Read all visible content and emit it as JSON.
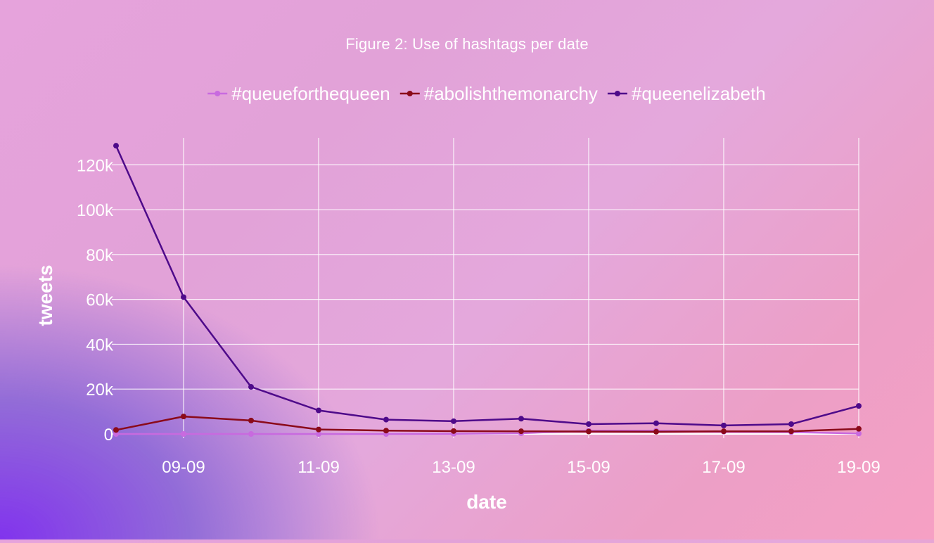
{
  "page": {
    "title": "Figure 2: Use of hashtags per date"
  },
  "chart_data": {
    "type": "line",
    "title": "Figure 2: Use of hashtags per date",
    "xlabel": "date",
    "ylabel": "tweets",
    "x": [
      "2022-09-08",
      "2022-09-09",
      "2022-09-10",
      "2022-09-11",
      "2022-09-12",
      "2022-09-13",
      "2022-09-14",
      "2022-09-15",
      "2022-09-16",
      "2022-09-17",
      "2022-09-18",
      "2022-09-19"
    ],
    "xlim": [
      "2022-09-08",
      "2022-09-19"
    ],
    "x_ticks": [
      "2022-09-09",
      "2022-09-11",
      "2022-09-13",
      "2022-09-15",
      "2022-09-17",
      "2022-09-19"
    ],
    "x_tick_labels": [
      "09-09",
      "11-09",
      "13-09",
      "15-09",
      "17-09",
      "19-09"
    ],
    "ylim": [
      0,
      132000
    ],
    "y_ticks": [
      0,
      20000,
      40000,
      60000,
      80000,
      100000,
      120000
    ],
    "y_tick_labels": [
      "0",
      "20k",
      "40k",
      "60k",
      "80k",
      "100k",
      "120k"
    ],
    "grid": true,
    "legend_position": "top",
    "series": [
      {
        "name": "#queueforthequeen",
        "color": "#c86adf",
        "values": [
          0,
          0,
          0,
          0,
          0,
          100,
          300,
          1500,
          1500,
          1000,
          800,
          200
        ]
      },
      {
        "name": "#abolishthemonarchy",
        "color": "#8b0a1a",
        "values": [
          1800,
          7800,
          6000,
          2000,
          1500,
          1300,
          1200,
          1100,
          1000,
          1200,
          1200,
          2300
        ]
      },
      {
        "name": "#queenelizabeth",
        "color": "#4e0a8a",
        "values": [
          128500,
          61000,
          21000,
          10500,
          6400,
          5700,
          6800,
          4400,
          4800,
          3800,
          4400,
          12500
        ]
      }
    ]
  }
}
